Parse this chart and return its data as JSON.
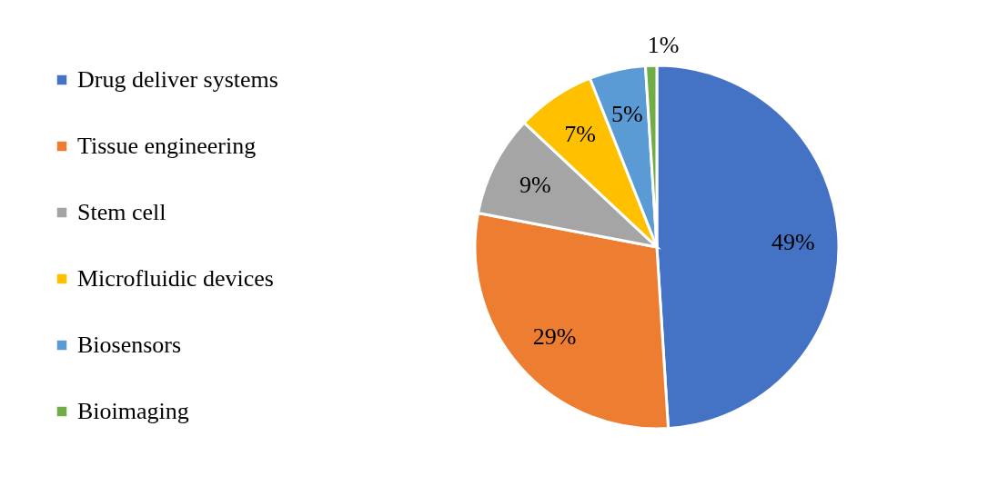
{
  "chart_data": {
    "type": "pie",
    "categories": [
      "Drug deliver systems",
      "Tissue engineering",
      "Stem cell",
      "Microfluidic devices",
      "Biosensors",
      "Bioimaging"
    ],
    "values": [
      49,
      29,
      9,
      7,
      5,
      1
    ],
    "value_labels": [
      "49%",
      "29%",
      "9%",
      "7%",
      "5%",
      "1%"
    ],
    "colors": [
      "#4472c4",
      "#ed7d31",
      "#a5a5a5",
      "#ffc000",
      "#5b9bd5",
      "#70ad47"
    ],
    "legend": "left"
  }
}
